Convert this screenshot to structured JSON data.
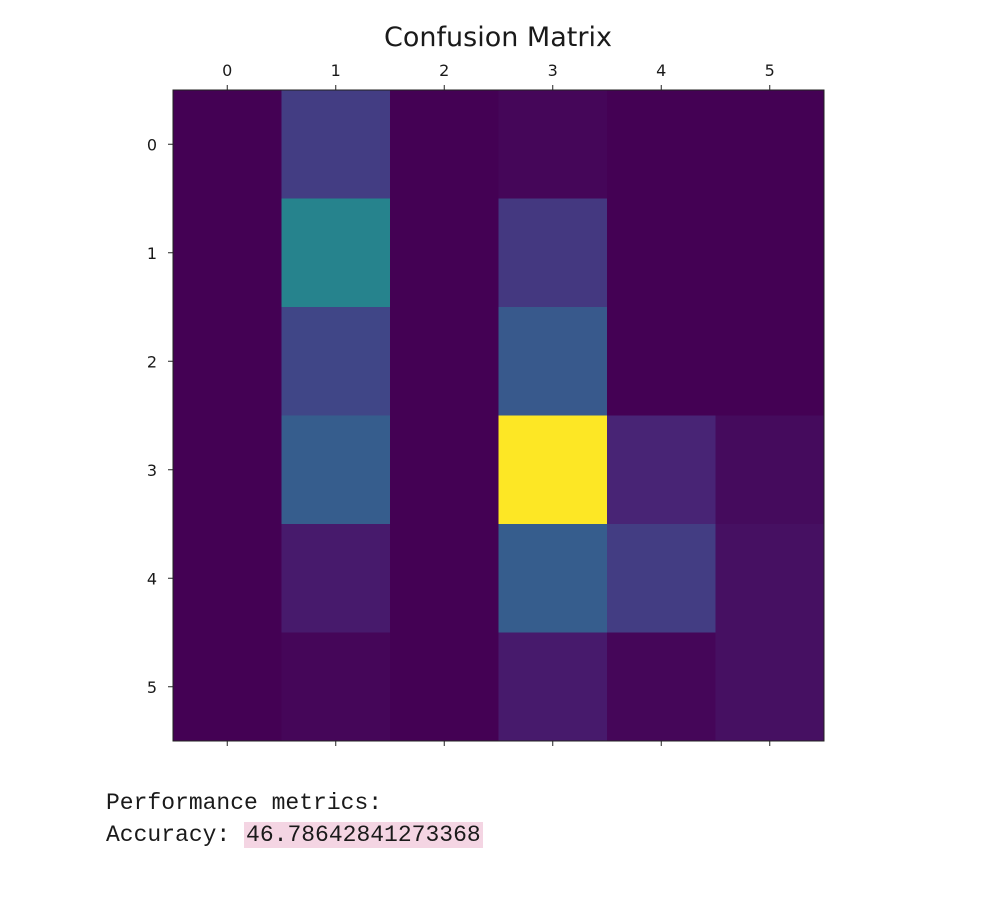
{
  "chart_data": {
    "type": "heatmap",
    "title": "Confusion Matrix",
    "x_ticks": [
      "0",
      "1",
      "2",
      "3",
      "4",
      "5"
    ],
    "y_ticks": [
      "0",
      "1",
      "2",
      "3",
      "4",
      "5"
    ],
    "x_axis_position": "top",
    "colormap": "viridis",
    "grid": false,
    "values": [
      [
        0,
        12,
        0,
        1,
        0,
        0
      ],
      [
        0,
        30,
        0,
        11,
        0,
        0
      ],
      [
        0,
        14,
        0,
        19,
        0,
        0
      ],
      [
        0,
        20,
        0,
        54,
        7,
        2
      ],
      [
        0,
        5,
        0,
        20,
        12,
        3
      ],
      [
        0,
        1,
        0,
        5,
        1,
        3
      ]
    ],
    "vmin": 0,
    "vmax": 54
  },
  "output": {
    "heading": "Performance metrics:",
    "accuracy_label": "Accuracy: ",
    "accuracy_value": "46.78642841273368"
  }
}
